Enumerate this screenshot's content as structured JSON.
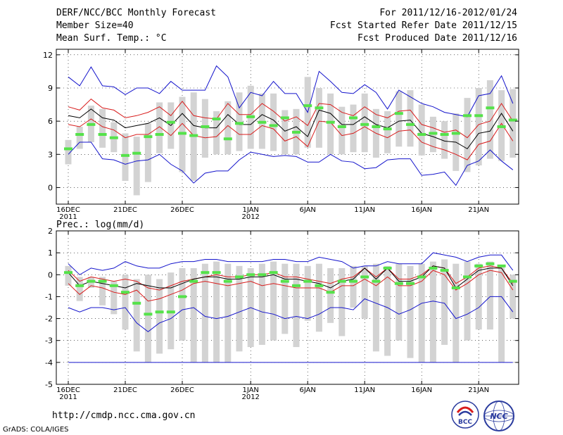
{
  "header": {
    "title": "DERF/NCC/BCC Monthly Forecast",
    "member_size": "Member Size=40",
    "variable": "Mean Surf. Temp.: °C",
    "period": "For 2011/12/16-2012/01/24",
    "started": "Fcst Started Refer Date 2011/12/15",
    "produced": "Fcst Produced Date 2011/12/16"
  },
  "footer": {
    "url": "http://cmdp.ncc.cma.gov.cn",
    "credit": "GrADS: COLA/IGES",
    "logo_bcc": "BCC",
    "logo_ncc": "NCC"
  },
  "colors": {
    "box": "#d3d3d3",
    "median": "#55e24a",
    "mean": "#000000",
    "inner": "#d81c1c",
    "outer": "#1414cc"
  },
  "chart_data": [
    {
      "type": "box-ensemble",
      "title": "Mean Surf. Temp.: °C",
      "ylim": [
        -1.5,
        12.5
      ],
      "yticks": [
        0,
        3,
        6,
        9,
        12
      ],
      "x_days": 40,
      "xticks": [
        {
          "day": 1,
          "label": "16DEC",
          "sub": "2011"
        },
        {
          "day": 6,
          "label": "21DEC",
          "sub": ""
        },
        {
          "day": 11,
          "label": "26DEC",
          "sub": ""
        },
        {
          "day": 17,
          "label": "1JAN",
          "sub": "2012"
        },
        {
          "day": 22,
          "label": "6JAN",
          "sub": ""
        },
        {
          "day": 27,
          "label": "11JAN",
          "sub": ""
        },
        {
          "day": 32,
          "label": "16JAN",
          "sub": ""
        },
        {
          "day": 37,
          "label": "21JAN",
          "sub": ""
        }
      ],
      "series": {
        "box_low": [
          2.1,
          3.5,
          4.1,
          3.6,
          3.2,
          0.6,
          -0.7,
          0.5,
          3.1,
          3.5,
          1.4,
          0.6,
          2.7,
          3.0,
          3.0,
          3.3,
          3.5,
          3.5,
          3.3,
          3.0,
          3.0,
          3.6,
          3.6,
          3.0,
          3.0,
          3.2,
          3.2,
          2.7,
          3.1,
          3.7,
          3.7,
          2.9,
          3.2,
          2.6,
          1.5,
          1.4,
          2.0,
          2.6,
          2.4,
          2.7
        ],
        "box_high": [
          4.3,
          5.5,
          7.4,
          7.1,
          5.9,
          4.9,
          4.6,
          5.8,
          7.7,
          7.7,
          8.2,
          8.6,
          8.0,
          6.9,
          7.8,
          8.6,
          9.2,
          8.5,
          8.5,
          7.0,
          7.1,
          10.0,
          9.0,
          8.5,
          7.3,
          7.5,
          8.5,
          7.1,
          6.9,
          8.7,
          8.8,
          7.5,
          6.4,
          6.0,
          6.7,
          8.1,
          9.0,
          9.7,
          8.8,
          8.9
        ],
        "median": [
          3.5,
          4.8,
          5.7,
          4.8,
          4.5,
          2.9,
          3.1,
          4.6,
          4.8,
          5.9,
          4.9,
          4.7,
          5.5,
          6.2,
          4.4,
          5.8,
          6.4,
          5.9,
          5.6,
          6.3,
          5.0,
          7.4,
          7.2,
          5.9,
          5.5,
          6.3,
          5.7,
          5.5,
          5.3,
          6.7,
          5.7,
          4.8,
          4.9,
          4.8,
          4.9,
          6.5,
          6.5,
          7.2,
          5.5,
          6.1
        ],
        "mean": [
          6.5,
          6.3,
          7.1,
          6.3,
          6.1,
          5.4,
          5.6,
          5.8,
          6.3,
          5.6,
          6.7,
          5.6,
          5.4,
          5.4,
          6.6,
          5.7,
          5.7,
          6.6,
          6.1,
          5.1,
          5.5,
          4.6,
          7.0,
          6.7,
          5.7,
          5.7,
          6.4,
          5.7,
          5.4,
          6.0,
          6.1,
          4.9,
          4.6,
          4.2,
          4.1,
          3.5,
          4.9,
          5.1,
          6.7,
          5.1
        ],
        "inner_upper": [
          7.3,
          7.0,
          8.0,
          7.2,
          7.0,
          6.3,
          6.5,
          6.8,
          7.3,
          6.5,
          7.8,
          6.5,
          6.3,
          6.2,
          7.6,
          6.6,
          6.6,
          7.6,
          6.9,
          6.0,
          6.4,
          5.6,
          7.6,
          7.5,
          6.8,
          6.5,
          7.3,
          6.6,
          6.3,
          6.9,
          7.0,
          5.7,
          5.4,
          5.0,
          5.2,
          4.5,
          5.7,
          6.0,
          7.6,
          6.0
        ],
        "inner_lower": [
          5.7,
          5.5,
          6.2,
          5.5,
          5.2,
          4.5,
          4.8,
          4.8,
          5.5,
          4.7,
          5.8,
          4.7,
          4.5,
          4.6,
          5.6,
          4.8,
          4.8,
          5.6,
          5.3,
          4.2,
          4.6,
          3.7,
          6.0,
          5.9,
          4.7,
          4.9,
          5.5,
          4.9,
          4.5,
          5.1,
          5.2,
          4.1,
          3.7,
          3.4,
          3.0,
          2.5,
          3.9,
          4.2,
          5.8,
          4.2
        ],
        "outer_upper": [
          10.0,
          9.2,
          10.9,
          9.2,
          9.1,
          8.4,
          9.0,
          9.0,
          8.5,
          9.6,
          8.8,
          8.8,
          8.8,
          11.0,
          10.0,
          7.2,
          8.6,
          8.3,
          9.6,
          8.5,
          8.5,
          6.8,
          10.5,
          9.6,
          8.6,
          8.5,
          9.3,
          8.6,
          7.1,
          8.8,
          8.2,
          7.6,
          7.3,
          6.8,
          6.6,
          6.4,
          8.3,
          8.5,
          10.1,
          7.6
        ],
        "outer_lower": [
          3.0,
          4.1,
          4.1,
          2.6,
          2.5,
          2.1,
          2.4,
          2.5,
          3.0,
          2.1,
          1.5,
          0.4,
          1.3,
          1.5,
          1.5,
          2.5,
          3.2,
          3.0,
          2.8,
          2.9,
          2.8,
          2.3,
          2.3,
          3.0,
          2.4,
          2.3,
          1.7,
          1.8,
          2.5,
          2.6,
          2.6,
          1.1,
          1.2,
          1.4,
          0.2,
          2.0,
          2.4,
          3.4,
          2.4,
          1.6
        ]
      }
    },
    {
      "type": "box-ensemble",
      "title": "Prec.: log(mm/d)",
      "ylim": [
        -5,
        2
      ],
      "yticks": [
        -5,
        -4,
        -3,
        -2,
        -1,
        0,
        1,
        2
      ],
      "x_days": 40,
      "xticks": [
        {
          "day": 1,
          "label": "16DEC",
          "sub": "2011"
        },
        {
          "day": 6,
          "label": "21DEC",
          "sub": ""
        },
        {
          "day": 11,
          "label": "26DEC",
          "sub": ""
        },
        {
          "day": 17,
          "label": "1JAN",
          "sub": "2012"
        },
        {
          "day": 22,
          "label": "6JAN",
          "sub": ""
        },
        {
          "day": 27,
          "label": "11JAN",
          "sub": ""
        },
        {
          "day": 32,
          "label": "16JAN",
          "sub": ""
        },
        {
          "day": 37,
          "label": "21JAN",
          "sub": ""
        }
      ],
      "series": {
        "box_low": [
          -0.5,
          -1.2,
          -0.6,
          -1.4,
          -1.8,
          -2.5,
          -3.5,
          -4.0,
          -3.6,
          -3.4,
          -3.0,
          -4.0,
          -4.0,
          -4.0,
          -4.0,
          -3.5,
          -3.3,
          -3.2,
          -3.0,
          -2.7,
          -3.3,
          -2.1,
          -2.6,
          -2.2,
          -2.8,
          -1.5,
          -2.0,
          -3.5,
          -3.7,
          -3.0,
          -3.8,
          -4.0,
          -4.0,
          -3.2,
          -4.0,
          -3.0,
          -2.5,
          -2.5,
          -4.0,
          -2.0
        ],
        "box_high": [
          0.4,
          -0.1,
          -0.1,
          -0.1,
          -0.3,
          0.0,
          -0.2,
          0.0,
          -0.2,
          0.1,
          0.3,
          0.3,
          0.5,
          0.6,
          0.5,
          0.4,
          0.3,
          0.5,
          0.6,
          0.5,
          0.5,
          0.4,
          0.5,
          0.3,
          0.3,
          0.4,
          0.4,
          0.5,
          0.4,
          0.5,
          0.4,
          0.5,
          0.6,
          0.7,
          0.5,
          0.6,
          0.5,
          0.6,
          0.4,
          0.0
        ],
        "median": [
          0.1,
          -0.5,
          -0.3,
          -0.3,
          -0.5,
          -0.8,
          -1.3,
          -1.8,
          -1.7,
          -1.7,
          -1.0,
          -0.3,
          0.1,
          0.1,
          -0.3,
          -0.1,
          0.0,
          0.0,
          0.1,
          -0.3,
          -0.5,
          -0.3,
          -0.5,
          -0.8,
          -0.3,
          -0.3,
          -0.1,
          -0.3,
          0.3,
          -0.4,
          -0.4,
          -0.1,
          0.3,
          0.2,
          -0.6,
          -0.1,
          0.4,
          0.5,
          0.4,
          -0.3
        ],
        "mean": [
          0.1,
          -0.5,
          -0.3,
          -0.4,
          -0.5,
          -0.6,
          -0.4,
          -0.5,
          -0.6,
          -0.6,
          -0.4,
          -0.2,
          -0.1,
          -0.1,
          -0.2,
          -0.2,
          -0.1,
          -0.1,
          0.0,
          -0.2,
          -0.2,
          -0.3,
          -0.4,
          -0.6,
          -0.3,
          -0.2,
          0.3,
          -0.2,
          0.3,
          -0.3,
          -0.3,
          -0.1,
          0.4,
          0.3,
          -0.6,
          -0.2,
          0.2,
          0.3,
          0.3,
          -0.5
        ],
        "inner_upper": [
          0.2,
          -0.3,
          -0.1,
          -0.2,
          -0.3,
          -0.2,
          -0.3,
          -0.6,
          -0.7,
          -0.5,
          -0.3,
          -0.2,
          -0.1,
          0.0,
          -0.1,
          -0.1,
          0.0,
          0.0,
          0.1,
          -0.1,
          -0.1,
          -0.2,
          -0.3,
          -0.4,
          -0.2,
          -0.1,
          0.3,
          -0.1,
          0.3,
          -0.2,
          -0.2,
          0.0,
          0.4,
          0.3,
          -0.4,
          -0.1,
          0.3,
          0.4,
          0.3,
          -0.4
        ],
        "inner_lower": [
          -0.4,
          -0.9,
          -0.5,
          -0.6,
          -0.8,
          -0.9,
          -0.7,
          -1.2,
          -1.1,
          -0.9,
          -0.7,
          -0.4,
          -0.3,
          -0.4,
          -0.5,
          -0.4,
          -0.3,
          -0.5,
          -0.4,
          -0.5,
          -0.6,
          -0.6,
          -0.6,
          -0.8,
          -0.5,
          -0.5,
          -0.2,
          -0.5,
          -0.1,
          -0.5,
          -0.5,
          -0.3,
          0.2,
          0.0,
          -0.7,
          -0.4,
          0.0,
          0.2,
          0.1,
          -0.7
        ],
        "outer_upper": [
          0.5,
          0.0,
          0.3,
          0.2,
          0.3,
          0.6,
          0.4,
          0.3,
          0.3,
          0.5,
          0.6,
          0.6,
          0.7,
          0.7,
          0.6,
          0.6,
          0.6,
          0.6,
          0.7,
          0.7,
          0.6,
          0.6,
          0.8,
          0.7,
          0.6,
          0.3,
          0.4,
          0.4,
          0.6,
          0.5,
          0.5,
          0.5,
          1.0,
          0.9,
          0.8,
          0.6,
          0.8,
          0.9,
          0.9,
          0.2
        ],
        "outer_lower": [
          -1.5,
          -1.7,
          -1.5,
          -1.5,
          -1.6,
          -1.5,
          -2.2,
          -2.6,
          -2.2,
          -2.0,
          -1.6,
          -1.5,
          -1.9,
          -2.0,
          -1.9,
          -1.7,
          -1.5,
          -1.7,
          -1.8,
          -2.0,
          -1.9,
          -2.0,
          -1.8,
          -1.5,
          -1.5,
          -1.6,
          -1.1,
          -1.3,
          -1.5,
          -1.8,
          -1.6,
          -1.3,
          -1.2,
          -1.3,
          -2.0,
          -1.8,
          -1.5,
          -1.0,
          -1.0,
          -1.7
        ],
        "floor": -4
      }
    }
  ]
}
